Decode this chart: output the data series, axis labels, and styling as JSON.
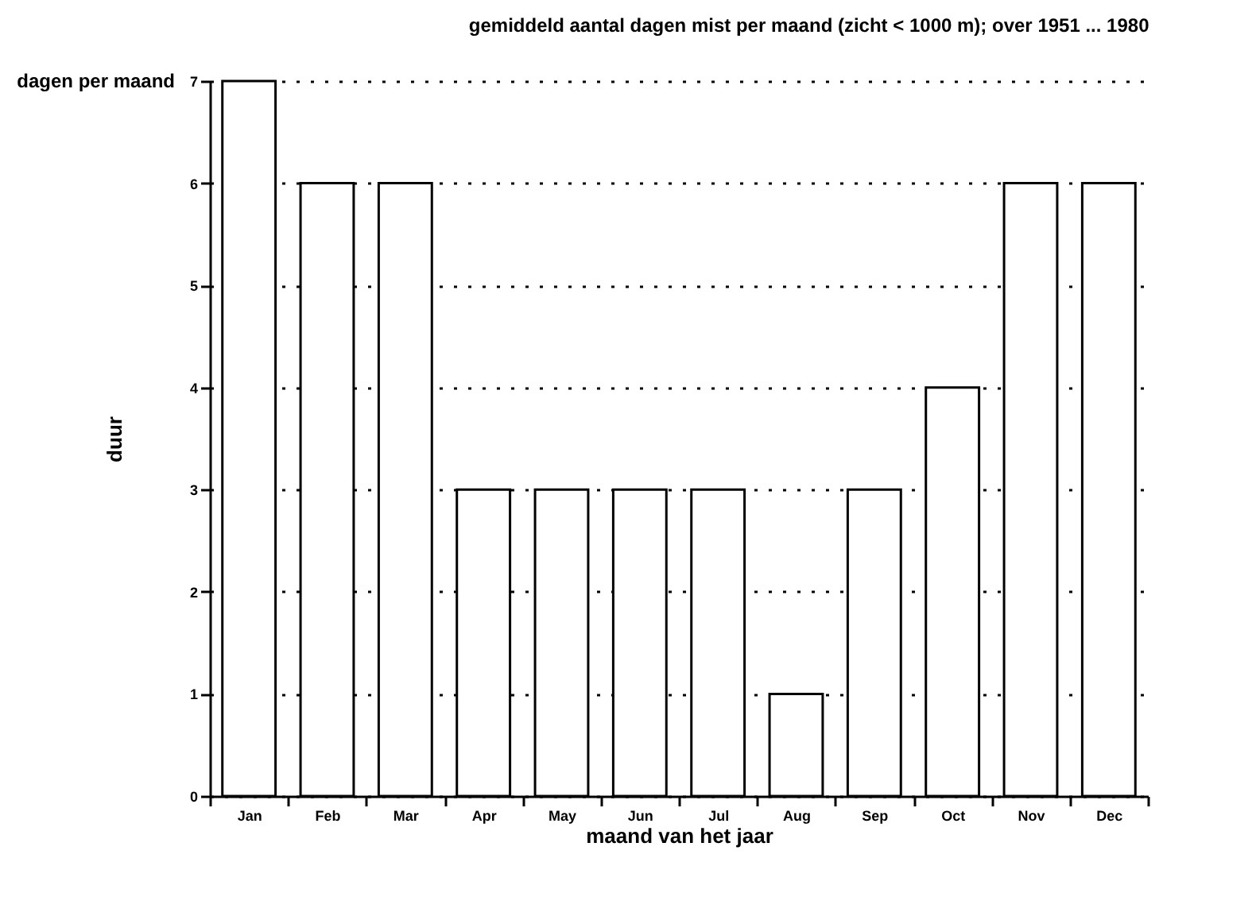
{
  "chart_data": {
    "type": "bar",
    "title": "gemiddeld aantal dagen mist per maand (zicht < 1000 m); over 1951 ... 1980",
    "xlabel": "maand van het jaar",
    "ylabel": "duur",
    "annotations": [
      "dagen per maand"
    ],
    "categories": [
      "Jan",
      "Feb",
      "Mar",
      "Apr",
      "May",
      "Jun",
      "Jul",
      "Aug",
      "Sep",
      "Oct",
      "Nov",
      "Dec"
    ],
    "values": [
      7,
      6,
      6,
      3,
      3,
      3,
      3,
      1,
      3,
      4,
      6,
      6
    ],
    "color": "#ffffff",
    "ylim": [
      0,
      7
    ],
    "yticks": [
      0,
      1,
      2,
      3,
      4,
      5,
      6,
      7
    ],
    "grid": "y"
  }
}
